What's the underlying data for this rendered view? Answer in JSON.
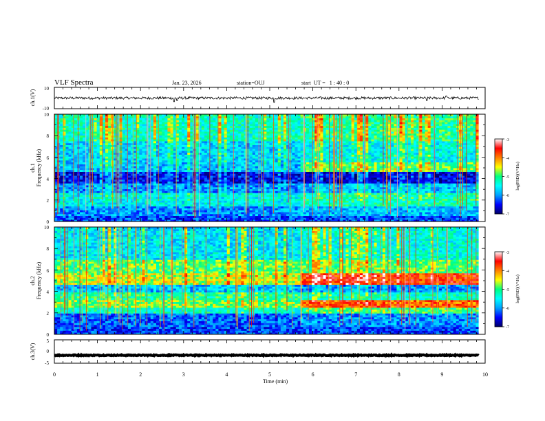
{
  "header": {
    "title": "VLF Spectra",
    "date": "Jan. 23, 2026",
    "station": "station=OUJ",
    "start": "start  UT =   1 : 40 : 0"
  },
  "colors": {
    "background": "#ffffff",
    "trace": "#000000",
    "colormap": [
      "#000066",
      "#0000ff",
      "#00a0ff",
      "#00ffff",
      "#00ff80",
      "#ffff00",
      "#ff8000",
      "#ff0000",
      "#ffffff"
    ]
  },
  "chart_data": [
    {
      "type": "line",
      "panel": "ch1-waveform",
      "ylabel": "ch.1(V)",
      "ylim": [
        -10,
        10
      ],
      "ytick_labels": [
        "10",
        "-10"
      ],
      "x_range_min": [
        0,
        9.85
      ],
      "baseline": 0,
      "noise_amplitude": 1.2,
      "spikes": [
        {
          "t": 2.78,
          "v": -3.5
        },
        {
          "t": 2.85,
          "v": -2.5
        },
        {
          "t": 5.1,
          "v": -4.2
        },
        {
          "t": 8.65,
          "v": -2.5
        },
        {
          "t": 9.1,
          "v": 2.0
        }
      ]
    },
    {
      "type": "heatmap",
      "panel": "ch1-spectrogram",
      "ylabel": "Frequency (kHz)",
      "channel_label": "ch.1",
      "ylim": [
        0,
        10
      ],
      "ytick_labels": [
        "0",
        "2",
        "4",
        "6",
        "8",
        "10"
      ],
      "x_range_min": [
        0,
        9.85
      ],
      "transition_min": 5.7,
      "colorbar": {
        "label": "log(PSD)(V²/Hz)",
        "range": [
          -7,
          -3
        ],
        "tick_labels": [
          "-3",
          "-4",
          "-5",
          "-6",
          "-7"
        ]
      },
      "bands": [
        {
          "f_low": 0,
          "f_high": 0.5,
          "level_before": -6.3,
          "level_after": -6.3
        },
        {
          "f_low": 0.5,
          "f_high": 1.5,
          "level_before": -6.0,
          "level_after": -5.8
        },
        {
          "f_low": 1.5,
          "f_high": 2.6,
          "level_before": -5.5,
          "level_after": -5.2
        },
        {
          "f_low": 2.6,
          "f_high": 3.5,
          "level_before": -6.0,
          "level_after": -5.8
        },
        {
          "f_low": 3.5,
          "f_high": 4.7,
          "level_before": -6.5,
          "level_after": -6.6
        },
        {
          "f_low": 4.7,
          "f_high": 5.5,
          "level_before": -5.8,
          "level_after": -4.9
        },
        {
          "f_low": 5.5,
          "f_high": 7.5,
          "level_before": -5.7,
          "level_after": -5.5
        },
        {
          "f_low": 7.5,
          "f_high": 10,
          "level_before": -5.3,
          "level_after": -5.1
        }
      ]
    },
    {
      "type": "heatmap",
      "panel": "ch2-spectrogram",
      "ylabel": "Frequency (kHz)",
      "channel_label": "ch.2",
      "ylim": [
        0,
        10
      ],
      "ytick_labels": [
        "0",
        "2",
        "4",
        "6",
        "8",
        "10"
      ],
      "x_range_min": [
        0,
        9.85
      ],
      "transition_min": 5.7,
      "colorbar": {
        "label": "log(PSD)(V²/Hz)",
        "range": [
          -7,
          -3
        ],
        "tick_labels": [
          "-3",
          "-4",
          "-5",
          "-6",
          "-7"
        ]
      },
      "bands": [
        {
          "f_low": 0,
          "f_high": 0.8,
          "level_before": -6.3,
          "level_after": -6.3
        },
        {
          "f_low": 0.8,
          "f_high": 2.0,
          "level_before": -6.2,
          "level_after": -6.0
        },
        {
          "f_low": 2.0,
          "f_high": 2.5,
          "level_before": -5.3,
          "level_after": -5.0
        },
        {
          "f_low": 2.5,
          "f_high": 3.2,
          "level_before": -4.8,
          "level_after": -3.9
        },
        {
          "f_low": 3.2,
          "f_high": 4.0,
          "level_before": -5.1,
          "level_after": -5.3
        },
        {
          "f_low": 4.0,
          "f_high": 4.6,
          "level_before": -5.8,
          "level_after": -6.0
        },
        {
          "f_low": 4.6,
          "f_high": 5.7,
          "level_before": -4.6,
          "level_after": -3.7
        },
        {
          "f_low": 5.7,
          "f_high": 7.0,
          "level_before": -4.9,
          "level_after": -4.9
        },
        {
          "f_low": 7.0,
          "f_high": 10,
          "level_before": -5.6,
          "level_after": -5.4
        }
      ]
    },
    {
      "type": "line",
      "panel": "ch3-waveform",
      "ylabel": "ch.3(V)",
      "ylim": [
        -5,
        5
      ],
      "ytick_labels": [
        "5",
        "0",
        "-5"
      ],
      "x_range_min": [
        0,
        9.85
      ],
      "baseline": -1.6,
      "noise_amplitude": 0.2,
      "spikes": []
    }
  ],
  "x_axis": {
    "label": "Time (min)",
    "range": [
      0,
      10
    ],
    "tick_labels": [
      "0",
      "1",
      "2",
      "3",
      "4",
      "5",
      "6",
      "7",
      "8",
      "9",
      "10"
    ]
  }
}
